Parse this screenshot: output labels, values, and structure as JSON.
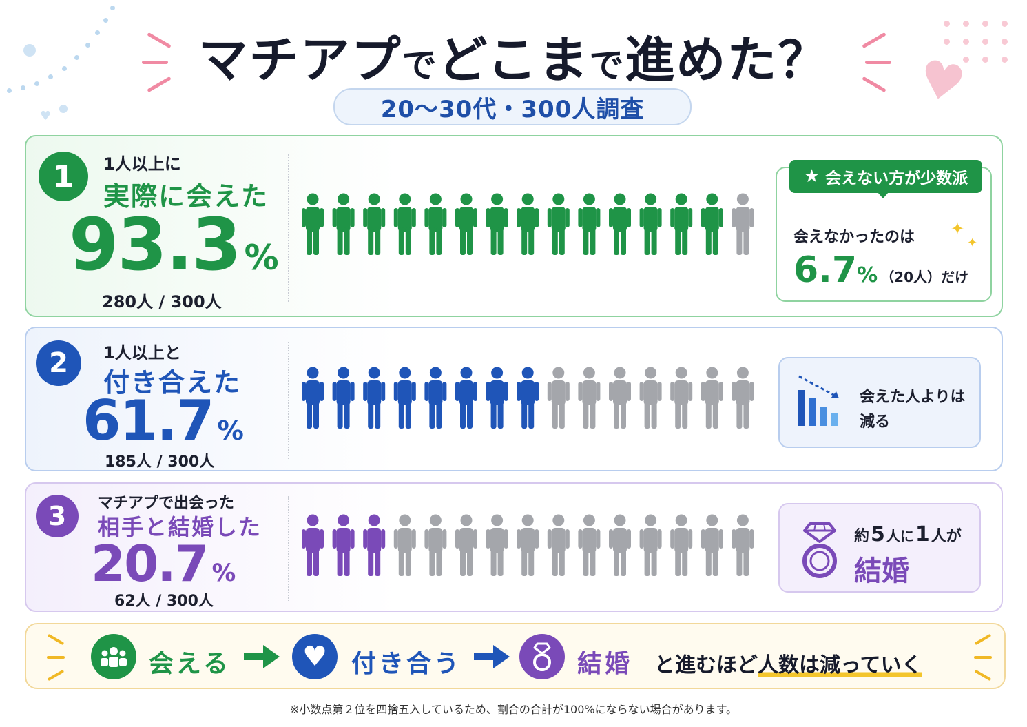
{
  "header": {
    "title_parts": [
      "マチアプ",
      "で",
      "どこま",
      "で",
      "進めた？"
    ],
    "subtitle": "20〜30代・300人調査"
  },
  "rows": [
    {
      "rank": "1",
      "label_small": "1人以上に",
      "label_big": "実際に会えた",
      "percent_number": "93.3",
      "percent_sign": "%",
      "count": "280人 / 300人",
      "color": "#1f9447",
      "people_total": 15,
      "people_highlighted": 14,
      "callout": {
        "tag": "会えない方が少数派",
        "line1": "会えなかったのは",
        "value_number": "6.7",
        "value_sign": "%",
        "value_suffix": "（20人）だけ"
      }
    },
    {
      "rank": "2",
      "label_small": "1人以上と",
      "label_big": "付き合えた",
      "percent_number": "61.7",
      "percent_sign": "%",
      "count": "185人 / 300人",
      "color": "#1f55b8",
      "people_total": 15,
      "people_highlighted": 8,
      "callout": {
        "line1": "会えた人よりは",
        "line2": "減る",
        "icon": "bar-chart-decline-icon"
      }
    },
    {
      "rank": "3",
      "label_small": "マチアプで出会った",
      "label_big": "相手と結婚した",
      "percent_number": "20.7",
      "percent_sign": "%",
      "count": "62人 / 300人",
      "color": "#7a4ab8",
      "people_total": 15,
      "people_highlighted": 3,
      "callout": {
        "line1_a": "約",
        "line1_b": "5",
        "line1_c": "人に",
        "line1_d": "1",
        "line1_e": "人が",
        "line2": "結婚",
        "icon": "diamond-ring-icon"
      }
    }
  ],
  "summary": {
    "step1": "会える",
    "step2": "付き合う",
    "step3": "結婚",
    "tail_plain": "と進むほど",
    "tail_highlight": "人数は減っていく",
    "colors": {
      "green": "#1f9447",
      "blue": "#1f55b8",
      "purple": "#7a4ab8"
    }
  },
  "footnote": "※小数点第２位を四捨五入しているため、割合の合計が100%にならない場合があります。"
}
